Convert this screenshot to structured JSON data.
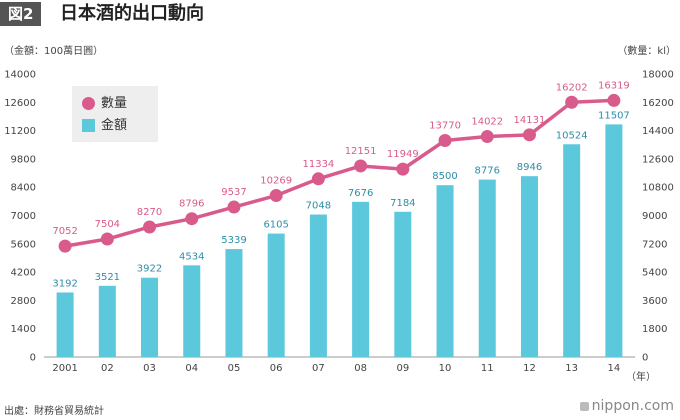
{
  "header": {
    "fig_label": "図2",
    "title": "日本酒的出口動向"
  },
  "units": {
    "left": "（金額：100萬日圓）",
    "right": "（數量：kl）",
    "x": "（年）"
  },
  "legend": {
    "count_label": "數量",
    "amount_label": "金額"
  },
  "footer": {
    "source": "出處：財務省貿易統計",
    "brand": "nippon.com"
  },
  "colors": {
    "count": "#d95b8c",
    "amount": "#5bc8dc",
    "amount_label": "#2c8ea8"
  },
  "chart_data": {
    "type": "bar",
    "title": "日本酒的出口動向",
    "categories": [
      "2001",
      "02",
      "03",
      "04",
      "05",
      "06",
      "07",
      "08",
      "09",
      "10",
      "11",
      "12",
      "13",
      "14"
    ],
    "y_left_ticks": [
      0,
      1400,
      2800,
      4200,
      5600,
      7000,
      8400,
      9800,
      11200,
      12600,
      14000
    ],
    "y_right_ticks": [
      0,
      1800,
      3600,
      5400,
      7200,
      9000,
      10800,
      12600,
      14400,
      16200,
      18000
    ],
    "ylim_left": [
      0,
      14000
    ],
    "ylim_right": [
      0,
      18000
    ],
    "series": [
      {
        "name": "金額",
        "type": "bar",
        "axis": "left",
        "values": [
          3192,
          3521,
          3922,
          4534,
          5339,
          6105,
          7048,
          7676,
          7184,
          8500,
          8776,
          8946,
          10524,
          11507
        ]
      },
      {
        "name": "數量",
        "type": "line",
        "axis": "right",
        "values": [
          7052,
          7504,
          8270,
          8796,
          9537,
          10269,
          11334,
          12151,
          11949,
          13770,
          14022,
          14131,
          16202,
          16319
        ]
      }
    ],
    "legend_position": "top-left",
    "grid": false
  }
}
